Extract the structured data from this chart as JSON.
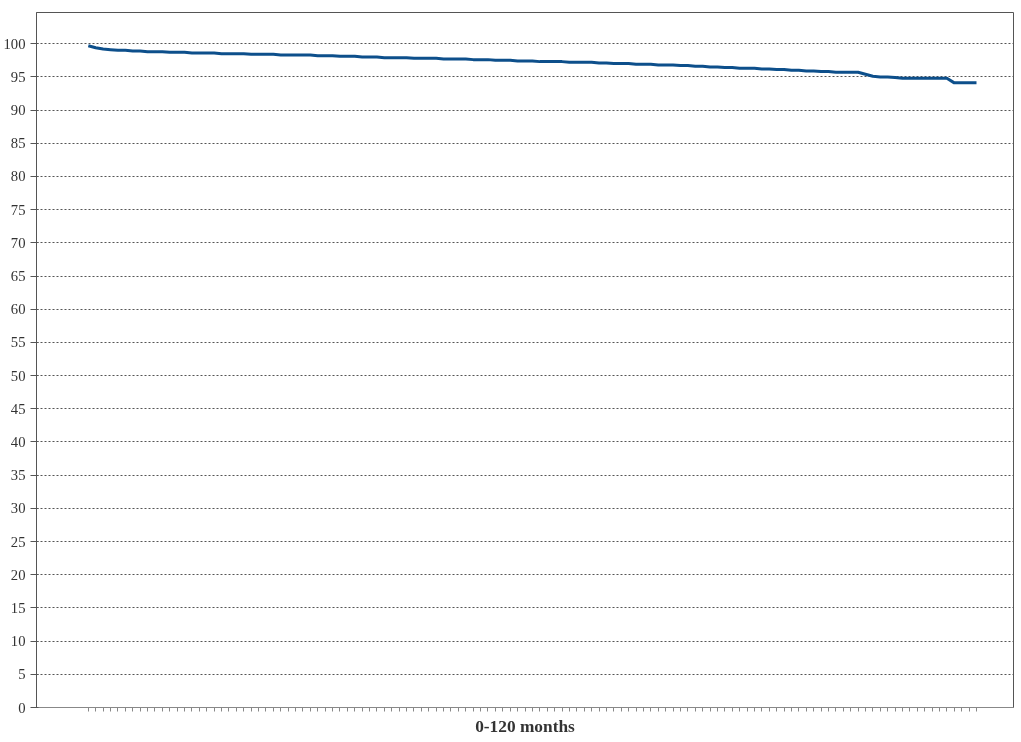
{
  "chart_data": {
    "type": "line",
    "xlabel": "0-120 months",
    "categories": [
      null,
      null,
      null,
      null,
      null,
      null,
      null,
      null,
      null,
      null,
      null,
      null,
      null,
      null,
      null,
      null,
      null,
      null,
      null,
      null,
      null,
      null,
      null,
      null,
      null,
      null,
      null,
      null,
      null,
      null,
      null,
      null,
      null,
      null,
      null,
      null,
      null,
      null,
      null,
      null,
      null,
      null,
      null,
      null,
      null,
      null,
      null,
      null,
      null,
      null,
      null,
      null,
      null,
      null,
      null,
      null,
      null,
      null,
      null,
      null,
      null,
      null,
      null,
      null,
      null,
      null,
      null,
      null,
      null,
      null,
      null,
      null,
      null,
      null,
      null,
      null,
      null,
      null,
      null,
      null,
      null,
      null,
      null,
      null,
      null,
      null,
      null,
      null,
      null,
      null,
      null,
      null,
      null,
      null,
      null,
      null,
      null,
      null,
      null,
      null,
      null,
      null,
      null,
      null,
      null,
      null,
      null,
      null,
      null,
      null,
      null,
      null,
      null,
      null,
      null,
      null,
      null,
      null,
      null,
      null,
      null
    ],
    "series": [
      {
        "color": "#0d4f8b",
        "values": [
          99.7,
          99.4,
          99.2,
          99.1,
          99.0,
          99.0,
          98.9,
          98.9,
          98.8,
          98.8,
          98.8,
          98.7,
          98.7,
          98.7,
          98.6,
          98.6,
          98.6,
          98.6,
          98.5,
          98.5,
          98.5,
          98.5,
          98.4,
          98.4,
          98.4,
          98.4,
          98.3,
          98.3,
          98.3,
          98.3,
          98.3,
          98.2,
          98.2,
          98.2,
          98.1,
          98.1,
          98.1,
          98.0,
          98.0,
          98.0,
          97.9,
          97.9,
          97.9,
          97.9,
          97.8,
          97.8,
          97.8,
          97.8,
          97.7,
          97.7,
          97.7,
          97.7,
          97.6,
          97.6,
          97.6,
          97.5,
          97.5,
          97.5,
          97.4,
          97.4,
          97.4,
          97.3,
          97.3,
          97.3,
          97.3,
          97.2,
          97.2,
          97.2,
          97.2,
          97.1,
          97.1,
          97.0,
          97.0,
          97.0,
          96.9,
          96.9,
          96.9,
          96.8,
          96.8,
          96.8,
          96.7,
          96.7,
          96.6,
          96.6,
          96.5,
          96.5,
          96.4,
          96.4,
          96.3,
          96.3,
          96.3,
          96.2,
          96.2,
          96.1,
          96.1,
          96.0,
          96.0,
          95.9,
          95.9,
          95.8,
          95.8,
          95.7,
          95.7,
          95.7,
          95.7,
          95.4,
          95.1,
          95.0,
          95.0,
          94.9,
          94.8,
          94.8,
          94.8,
          94.8,
          94.8,
          94.8,
          94.8,
          94.1,
          94.1,
          94.1,
          94.1
        ]
      }
    ],
    "ylim": [
      0,
      104.7
    ],
    "yticks": [
      0,
      5,
      10,
      15,
      20,
      25,
      30,
      35,
      40,
      45,
      50,
      55,
      60,
      65,
      70,
      75,
      80,
      85,
      90,
      95,
      100
    ],
    "grid": "y",
    "tick_labels": "y",
    "line_style": "solid",
    "marker": "none"
  }
}
